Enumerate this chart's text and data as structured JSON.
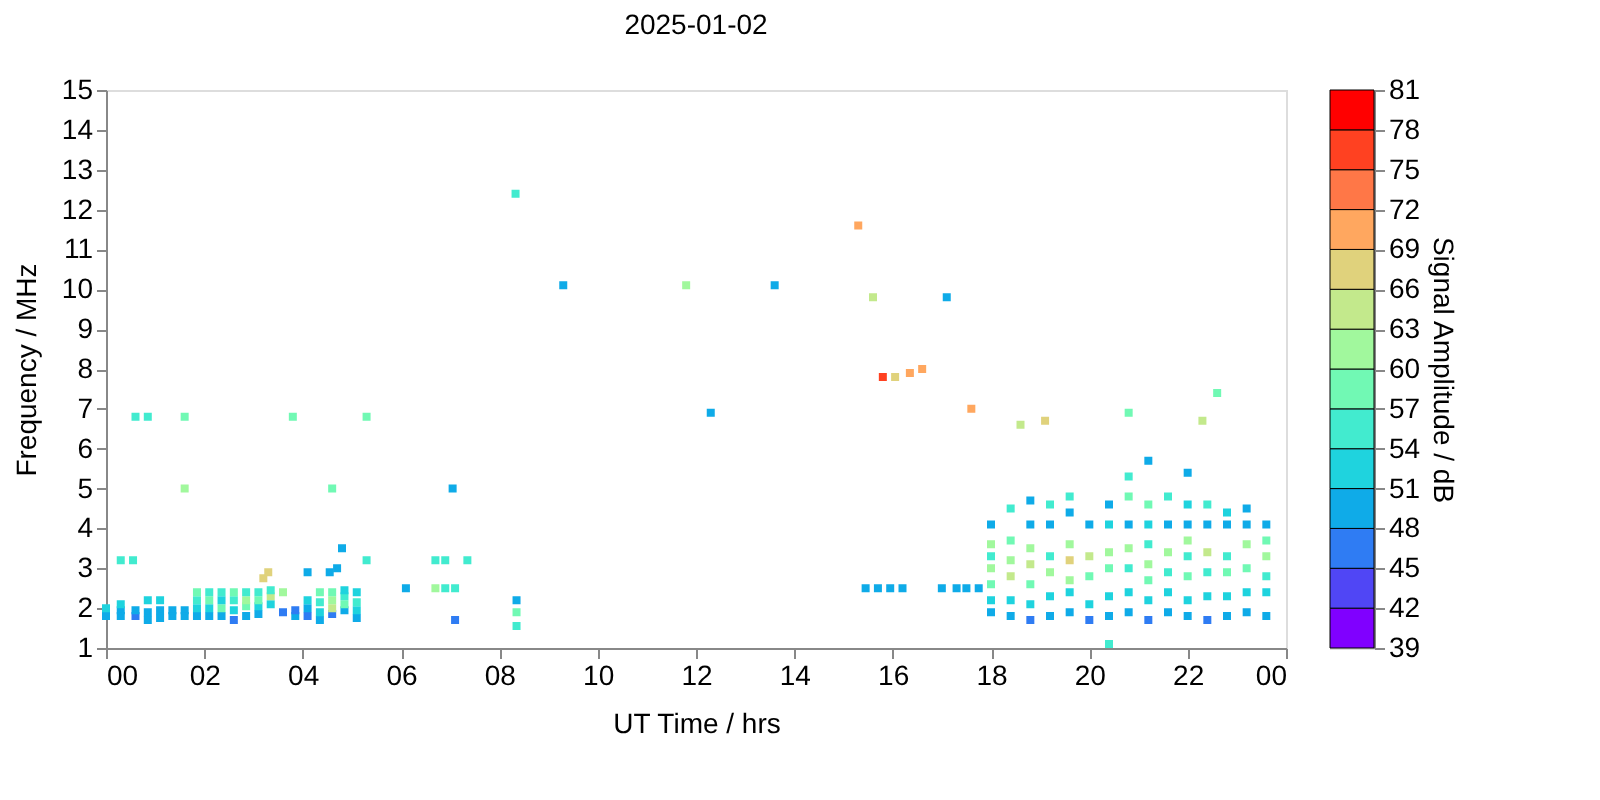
{
  "chart_data": {
    "type": "scatter",
    "title": "2025-01-02",
    "xlabel": "UT Time / hrs",
    "ylabel": "Frequency / MHz",
    "clabel": "Signal Amplitude / dB",
    "xlim": [
      0,
      24
    ],
    "xticks": [
      {
        "value": 0,
        "label": "00"
      },
      {
        "value": 2,
        "label": "02"
      },
      {
        "value": 4,
        "label": "04"
      },
      {
        "value": 6,
        "label": "06"
      },
      {
        "value": 8,
        "label": "08"
      },
      {
        "value": 10,
        "label": "10"
      },
      {
        "value": 12,
        "label": "12"
      },
      {
        "value": 14,
        "label": "14"
      },
      {
        "value": 16,
        "label": "16"
      },
      {
        "value": 18,
        "label": "18"
      },
      {
        "value": 20,
        "label": "20"
      },
      {
        "value": 22,
        "label": "22"
      },
      {
        "value": 24,
        "label": "00"
      }
    ],
    "ylim": [
      1,
      15
    ],
    "yticks": [
      1,
      2,
      3,
      4,
      5,
      6,
      7,
      8,
      9,
      10,
      11,
      12,
      13,
      14,
      15
    ],
    "clim": [
      39,
      81
    ],
    "cticks": [
      39,
      42,
      45,
      48,
      51,
      54,
      57,
      60,
      63,
      66,
      69,
      72,
      75,
      78,
      81
    ],
    "marker": "square",
    "grid": false,
    "series": [
      {
        "x": [
          8.33,
          9.3,
          11.8,
          13.6,
          15.3,
          15.6,
          17.1,
          12.3,
          15.8,
          16.05,
          16.35,
          16.6,
          17.6,
          18.6,
          19.1,
          20.8,
          22.3,
          22.6,
          0.6,
          0.85,
          1.6,
          1.6,
          3.8,
          4.6,
          5.3,
          7.05,
          8.35,
          8.35,
          8.35,
          0.3,
          0.55,
          3.3,
          3.2,
          4.1,
          4.55,
          4.7,
          4.8,
          5.3,
          6.7,
          6.9,
          7.35,
          6.1,
          6.7,
          6.9,
          7.1,
          7.1,
          15.45,
          15.7,
          15.95,
          16.2,
          17.0,
          17.3,
          17.5,
          17.75
        ],
        "values": [
          12.4,
          10.1,
          10.1,
          10.1,
          11.6,
          9.8,
          9.8,
          6.9,
          7.8,
          7.8,
          7.9,
          8.0,
          7.0,
          6.6,
          6.7,
          6.9,
          6.7,
          7.4,
          6.8,
          6.8,
          6.8,
          5.0,
          6.8,
          5.0,
          6.8,
          5.0,
          2.2,
          1.9,
          1.55,
          3.2,
          3.2,
          2.9,
          2.75,
          2.9,
          2.9,
          3.0,
          3.5,
          3.2,
          3.2,
          3.2,
          3.2,
          2.5,
          2.5,
          2.5,
          2.5,
          1.7,
          2.5,
          2.5,
          2.5,
          2.5,
          2.5,
          2.5,
          2.5,
          2.5
        ],
        "colors": [
          "#42ebcf",
          "#0fabe8",
          "#a1f89d",
          "#0fabe8",
          "#ffa75f",
          "#c3e98c",
          "#0fabe8",
          "#0fabe8",
          "#ff4121",
          "#e0d27c",
          "#ffa75f",
          "#ffa75f",
          "#ffa75f",
          "#c3e98c",
          "#e0d27c",
          "#71f9b4",
          "#c3e98c",
          "#71f9b4",
          "#42ebcf",
          "#42ebcf",
          "#71f9b4",
          "#a1f89d",
          "#71f9b4",
          "#71f9b4",
          "#71f9b4",
          "#0fabe8",
          "#0fabe8",
          "#71f9b4",
          "#42ebcf",
          "#42ebcf",
          "#42ebcf",
          "#e0d27c",
          "#e0d27c",
          "#0fabe8",
          "#0fabe8",
          "#0fabe8",
          "#0fabe8",
          "#42ebcf",
          "#42ebcf",
          "#42ebcf",
          "#42ebcf",
          "#0fabe8",
          "#a1f89d",
          "#42ebcf",
          "#42ebcf",
          "#2f7cf3",
          "#0fabe8",
          "#0fabe8",
          "#0fabe8",
          "#0fabe8",
          "#0fabe8",
          "#0fabe8",
          "#0fabe8",
          "#0fabe8"
        ],
        "cvalues": [
          55,
          49,
          60,
          49,
          70,
          64,
          49,
          49,
          77,
          67,
          70,
          70,
          70,
          63,
          67,
          57,
          63,
          57,
          55,
          55,
          57,
          60,
          57,
          57,
          57,
          49,
          49,
          57,
          55,
          55,
          55,
          67,
          67,
          49,
          49,
          49,
          49,
          55,
          55,
          55,
          55,
          49,
          60,
          55,
          55,
          45,
          49,
          49,
          49,
          49,
          49,
          49,
          49,
          49
        ]
      },
      {
        "x": [
          0.0,
          0.0,
          0.3,
          0.3,
          0.3,
          0.6,
          0.6,
          0.85,
          0.85,
          0.85,
          1.1,
          1.1,
          1.1,
          1.35,
          1.35,
          1.6,
          1.6,
          1.85,
          1.85,
          1.85,
          1.85,
          2.1,
          2.1,
          2.1,
          2.1,
          2.35,
          2.35,
          2.35,
          2.35,
          2.6,
          2.6,
          2.6,
          2.6,
          2.85,
          2.85,
          2.85,
          2.85,
          3.1,
          3.1,
          3.1,
          3.1,
          3.35,
          3.35,
          3.35,
          3.6,
          3.6,
          3.85,
          3.85,
          4.1,
          4.1,
          4.1,
          4.35,
          4.35,
          4.35,
          4.35,
          4.6,
          4.6,
          4.6,
          4.6,
          4.85,
          4.85,
          4.85,
          4.85,
          5.1,
          5.1,
          5.1,
          5.1
        ],
        "values": [
          1.8,
          2.0,
          1.8,
          1.95,
          2.1,
          1.8,
          1.95,
          1.7,
          1.9,
          2.2,
          1.75,
          1.95,
          2.2,
          1.8,
          1.95,
          1.8,
          1.95,
          1.8,
          2.0,
          2.2,
          2.4,
          1.8,
          2.0,
          2.2,
          2.4,
          1.8,
          2.0,
          2.2,
          2.4,
          1.7,
          1.95,
          2.2,
          2.4,
          1.8,
          2.05,
          2.2,
          2.4,
          1.85,
          2.05,
          2.2,
          2.4,
          2.1,
          2.3,
          2.45,
          1.9,
          2.4,
          1.8,
          1.95,
          1.8,
          2.0,
          2.2,
          1.7,
          1.9,
          2.15,
          2.4,
          1.85,
          2.0,
          2.2,
          2.4,
          1.95,
          2.1,
          2.3,
          2.45,
          1.75,
          1.95,
          2.15,
          2.4
        ],
        "colors": [
          "#0fabe8",
          "#1fd3de",
          "#0fabe8",
          "#0fabe8",
          "#1fd3de",
          "#2f7cf3",
          "#0fabe8",
          "#0fabe8",
          "#0fabe8",
          "#1fd3de",
          "#0fabe8",
          "#0fabe8",
          "#1fd3de",
          "#0fabe8",
          "#0fabe8",
          "#0fabe8",
          "#0fabe8",
          "#0fabe8",
          "#1fd3de",
          "#42ebcf",
          "#71f9b4",
          "#0fabe8",
          "#1fd3de",
          "#71f9b4",
          "#42ebcf",
          "#0fabe8",
          "#71f9b4",
          "#1fd3de",
          "#42ebcf",
          "#2f7cf3",
          "#1fd3de",
          "#42ebcf",
          "#71f9b4",
          "#0fabe8",
          "#71f9b4",
          "#a1f89d",
          "#42ebcf",
          "#0fabe8",
          "#1fd3de",
          "#71f9b4",
          "#42ebcf",
          "#1fd3de",
          "#c3e98c",
          "#42ebcf",
          "#2f7cf3",
          "#a1f89d",
          "#0fabe8",
          "#2f7cf3",
          "#2f7cf3",
          "#0fabe8",
          "#1fd3de",
          "#0fabe8",
          "#1fd3de",
          "#42ebcf",
          "#71f9b4",
          "#2f7cf3",
          "#c3e98c",
          "#a1f89d",
          "#71f9b4",
          "#0fabe8",
          "#71f9b4",
          "#42ebcf",
          "#1fd3de",
          "#0fabe8",
          "#1fd3de",
          "#42ebcf",
          "#1fd3de"
        ],
        "cvalues": [
          48,
          51,
          48,
          49,
          51,
          47,
          49,
          48,
          49,
          51,
          48,
          49,
          51,
          49,
          48,
          48,
          49,
          49,
          51,
          55,
          57,
          48,
          51,
          57,
          55,
          49,
          57,
          51,
          55,
          47,
          51,
          55,
          57,
          48,
          57,
          60,
          55,
          49,
          51,
          57,
          55,
          51,
          63,
          55,
          45,
          60,
          48,
          47,
          47,
          49,
          51,
          49,
          51,
          55,
          57,
          47,
          63,
          60,
          57,
          49,
          57,
          55,
          51,
          49,
          51,
          55,
          51
        ]
      },
      {
        "x": [
          18.0,
          18.0,
          18.0,
          18.0,
          18.0,
          18.0,
          18.0,
          18.4,
          18.4,
          18.4,
          18.4,
          18.4,
          18.4,
          18.8,
          18.8,
          18.8,
          18.8,
          18.8,
          18.8,
          18.8,
          19.2,
          19.2,
          19.2,
          19.2,
          19.2,
          19.2,
          19.6,
          19.6,
          19.6,
          19.6,
          19.6,
          19.6,
          19.6,
          20.0,
          20.0,
          20.0,
          20.0,
          20.0,
          20.4,
          20.4,
          20.4,
          20.4,
          20.4,
          20.4,
          20.4,
          20.8,
          20.8,
          20.8,
          20.8,
          20.8,
          20.8,
          20.8,
          21.2,
          21.2,
          21.2,
          21.2,
          21.2,
          21.2,
          21.2,
          21.2,
          21.6,
          21.6,
          21.6,
          21.6,
          21.6,
          21.6,
          22.0,
          22.0,
          22.0,
          22.0,
          22.0,
          22.0,
          22.0,
          22.0,
          22.4,
          22.4,
          22.4,
          22.4,
          22.4,
          22.4,
          22.8,
          22.8,
          22.8,
          22.8,
          22.8,
          22.8,
          23.2,
          23.2,
          23.2,
          23.2,
          23.2,
          23.2,
          23.6,
          23.6,
          23.6,
          23.6,
          23.6,
          23.6
        ],
        "values": [
          1.9,
          2.2,
          2.6,
          3.0,
          3.3,
          3.6,
          4.1,
          1.8,
          2.2,
          2.8,
          3.2,
          3.7,
          4.5,
          1.7,
          2.1,
          2.6,
          3.1,
          3.5,
          4.1,
          4.7,
          1.8,
          2.3,
          2.9,
          3.3,
          4.1,
          4.6,
          1.9,
          2.4,
          2.7,
          3.2,
          3.6,
          4.4,
          4.8,
          1.7,
          2.1,
          2.8,
          3.3,
          4.1,
          1.8,
          2.3,
          3.0,
          3.4,
          4.1,
          4.6,
          1.1,
          1.9,
          2.4,
          3.0,
          3.5,
          4.1,
          4.8,
          5.3,
          1.7,
          2.2,
          2.7,
          3.1,
          3.6,
          4.1,
          4.6,
          5.7,
          1.9,
          2.4,
          2.9,
          3.4,
          4.1,
          4.8,
          1.8,
          2.2,
          2.8,
          3.3,
          3.7,
          4.1,
          4.6,
          5.4,
          1.7,
          2.3,
          2.9,
          3.4,
          4.1,
          4.6,
          1.8,
          2.3,
          2.9,
          3.3,
          4.1,
          4.4,
          1.9,
          2.4,
          3.0,
          3.6,
          4.1,
          4.5,
          1.8,
          2.4,
          2.8,
          3.3,
          3.7,
          4.1
        ],
        "colors": [
          "#0fabe8",
          "#1fd3de",
          "#71f9b4",
          "#a1f89d",
          "#42ebcf",
          "#a1f89d",
          "#0fabe8",
          "#0fabe8",
          "#1fd3de",
          "#c3e98c",
          "#a1f89d",
          "#71f9b4",
          "#42ebcf",
          "#2f7cf3",
          "#1fd3de",
          "#71f9b4",
          "#c3e98c",
          "#a1f89d",
          "#0fabe8",
          "#0fabe8",
          "#0fabe8",
          "#1fd3de",
          "#a1f89d",
          "#42ebcf",
          "#0fabe8",
          "#42ebcf",
          "#0fabe8",
          "#1fd3de",
          "#a1f89d",
          "#e0d27c",
          "#a1f89d",
          "#0fabe8",
          "#42ebcf",
          "#2f7cf3",
          "#1fd3de",
          "#71f9b4",
          "#c3e98c",
          "#0fabe8",
          "#0fabe8",
          "#1fd3de",
          "#71f9b4",
          "#a1f89d",
          "#1fd3de",
          "#0fabe8",
          "#42ebcf",
          "#0fabe8",
          "#1fd3de",
          "#42ebcf",
          "#a1f89d",
          "#0fabe8",
          "#71f9b4",
          "#42ebcf",
          "#2f7cf3",
          "#1fd3de",
          "#71f9b4",
          "#a1f89d",
          "#42ebcf",
          "#1fd3de",
          "#71f9b4",
          "#0fabe8",
          "#0fabe8",
          "#1fd3de",
          "#42ebcf",
          "#a1f89d",
          "#0fabe8",
          "#42ebcf",
          "#0fabe8",
          "#1fd3de",
          "#71f9b4",
          "#42ebcf",
          "#a1f89d",
          "#0fabe8",
          "#1fd3de",
          "#0fabe8",
          "#2f7cf3",
          "#1fd3de",
          "#42ebcf",
          "#c3e98c",
          "#0fabe8",
          "#42ebcf",
          "#0fabe8",
          "#1fd3de",
          "#71f9b4",
          "#42ebcf",
          "#0fabe8",
          "#1fd3de",
          "#0fabe8",
          "#1fd3de",
          "#71f9b4",
          "#a1f89d",
          "#0fabe8",
          "#0fabe8",
          "#0fabe8",
          "#1fd3de",
          "#42ebcf",
          "#a1f89d",
          "#71f9b4",
          "#0fabe8"
        ],
        "cvalues": [
          49,
          51,
          57,
          60,
          55,
          60,
          49,
          48,
          51,
          63,
          60,
          57,
          55,
          45,
          51,
          57,
          63,
          60,
          49,
          49,
          49,
          51,
          60,
          55,
          49,
          55,
          49,
          51,
          60,
          66,
          60,
          49,
          55,
          45,
          51,
          57,
          63,
          49,
          48,
          51,
          57,
          60,
          51,
          49,
          55,
          49,
          51,
          55,
          60,
          49,
          57,
          55,
          45,
          51,
          57,
          60,
          55,
          51,
          57,
          49,
          49,
          51,
          55,
          60,
          49,
          55,
          48,
          51,
          57,
          55,
          60,
          49,
          51,
          49,
          45,
          51,
          55,
          63,
          49,
          55,
          48,
          51,
          57,
          55,
          49,
          51,
          49,
          51,
          57,
          60,
          49,
          49,
          48,
          51,
          55,
          60,
          57,
          49
        ]
      }
    ]
  }
}
